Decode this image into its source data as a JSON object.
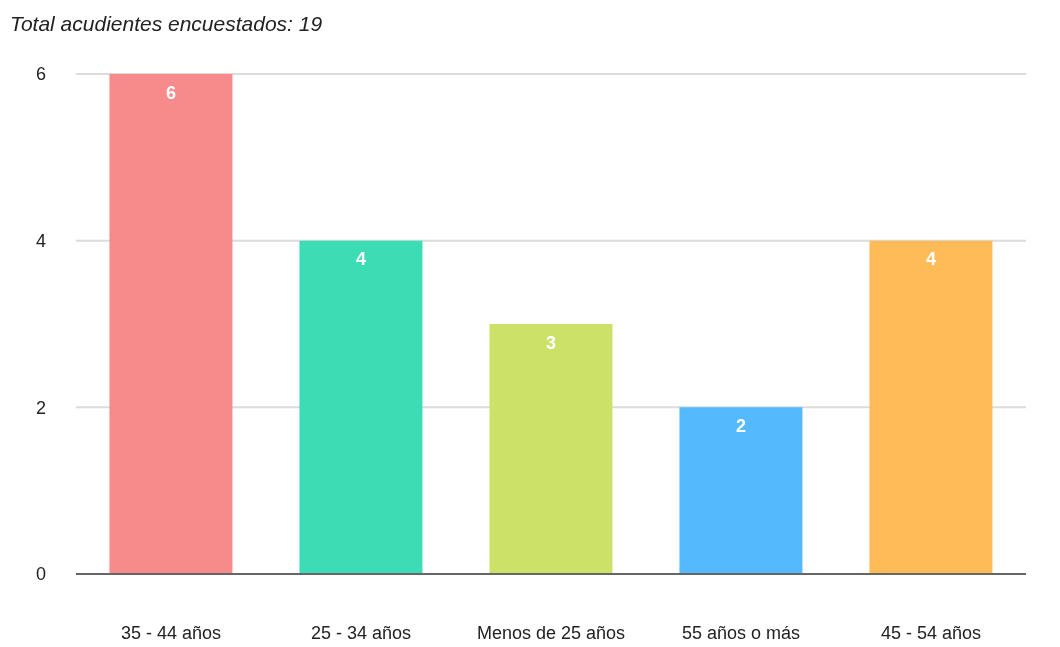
{
  "chart_data": {
    "type": "bar",
    "title": "Total acudientes encuestados: 19",
    "categories": [
      "35 - 44 años",
      "25 - 34 años",
      "Menos de 25 años",
      "55 años o más",
      "45 - 54 años"
    ],
    "values": [
      6,
      4,
      3,
      2,
      4
    ],
    "colors": [
      "#f78a8a",
      "#3cdcb4",
      "#cbe168",
      "#54b9fd",
      "#ffbb58"
    ],
    "ylim": [
      0,
      6
    ],
    "yticks": [
      0,
      2,
      4,
      6
    ],
    "grid": "y",
    "data_labels": true
  }
}
